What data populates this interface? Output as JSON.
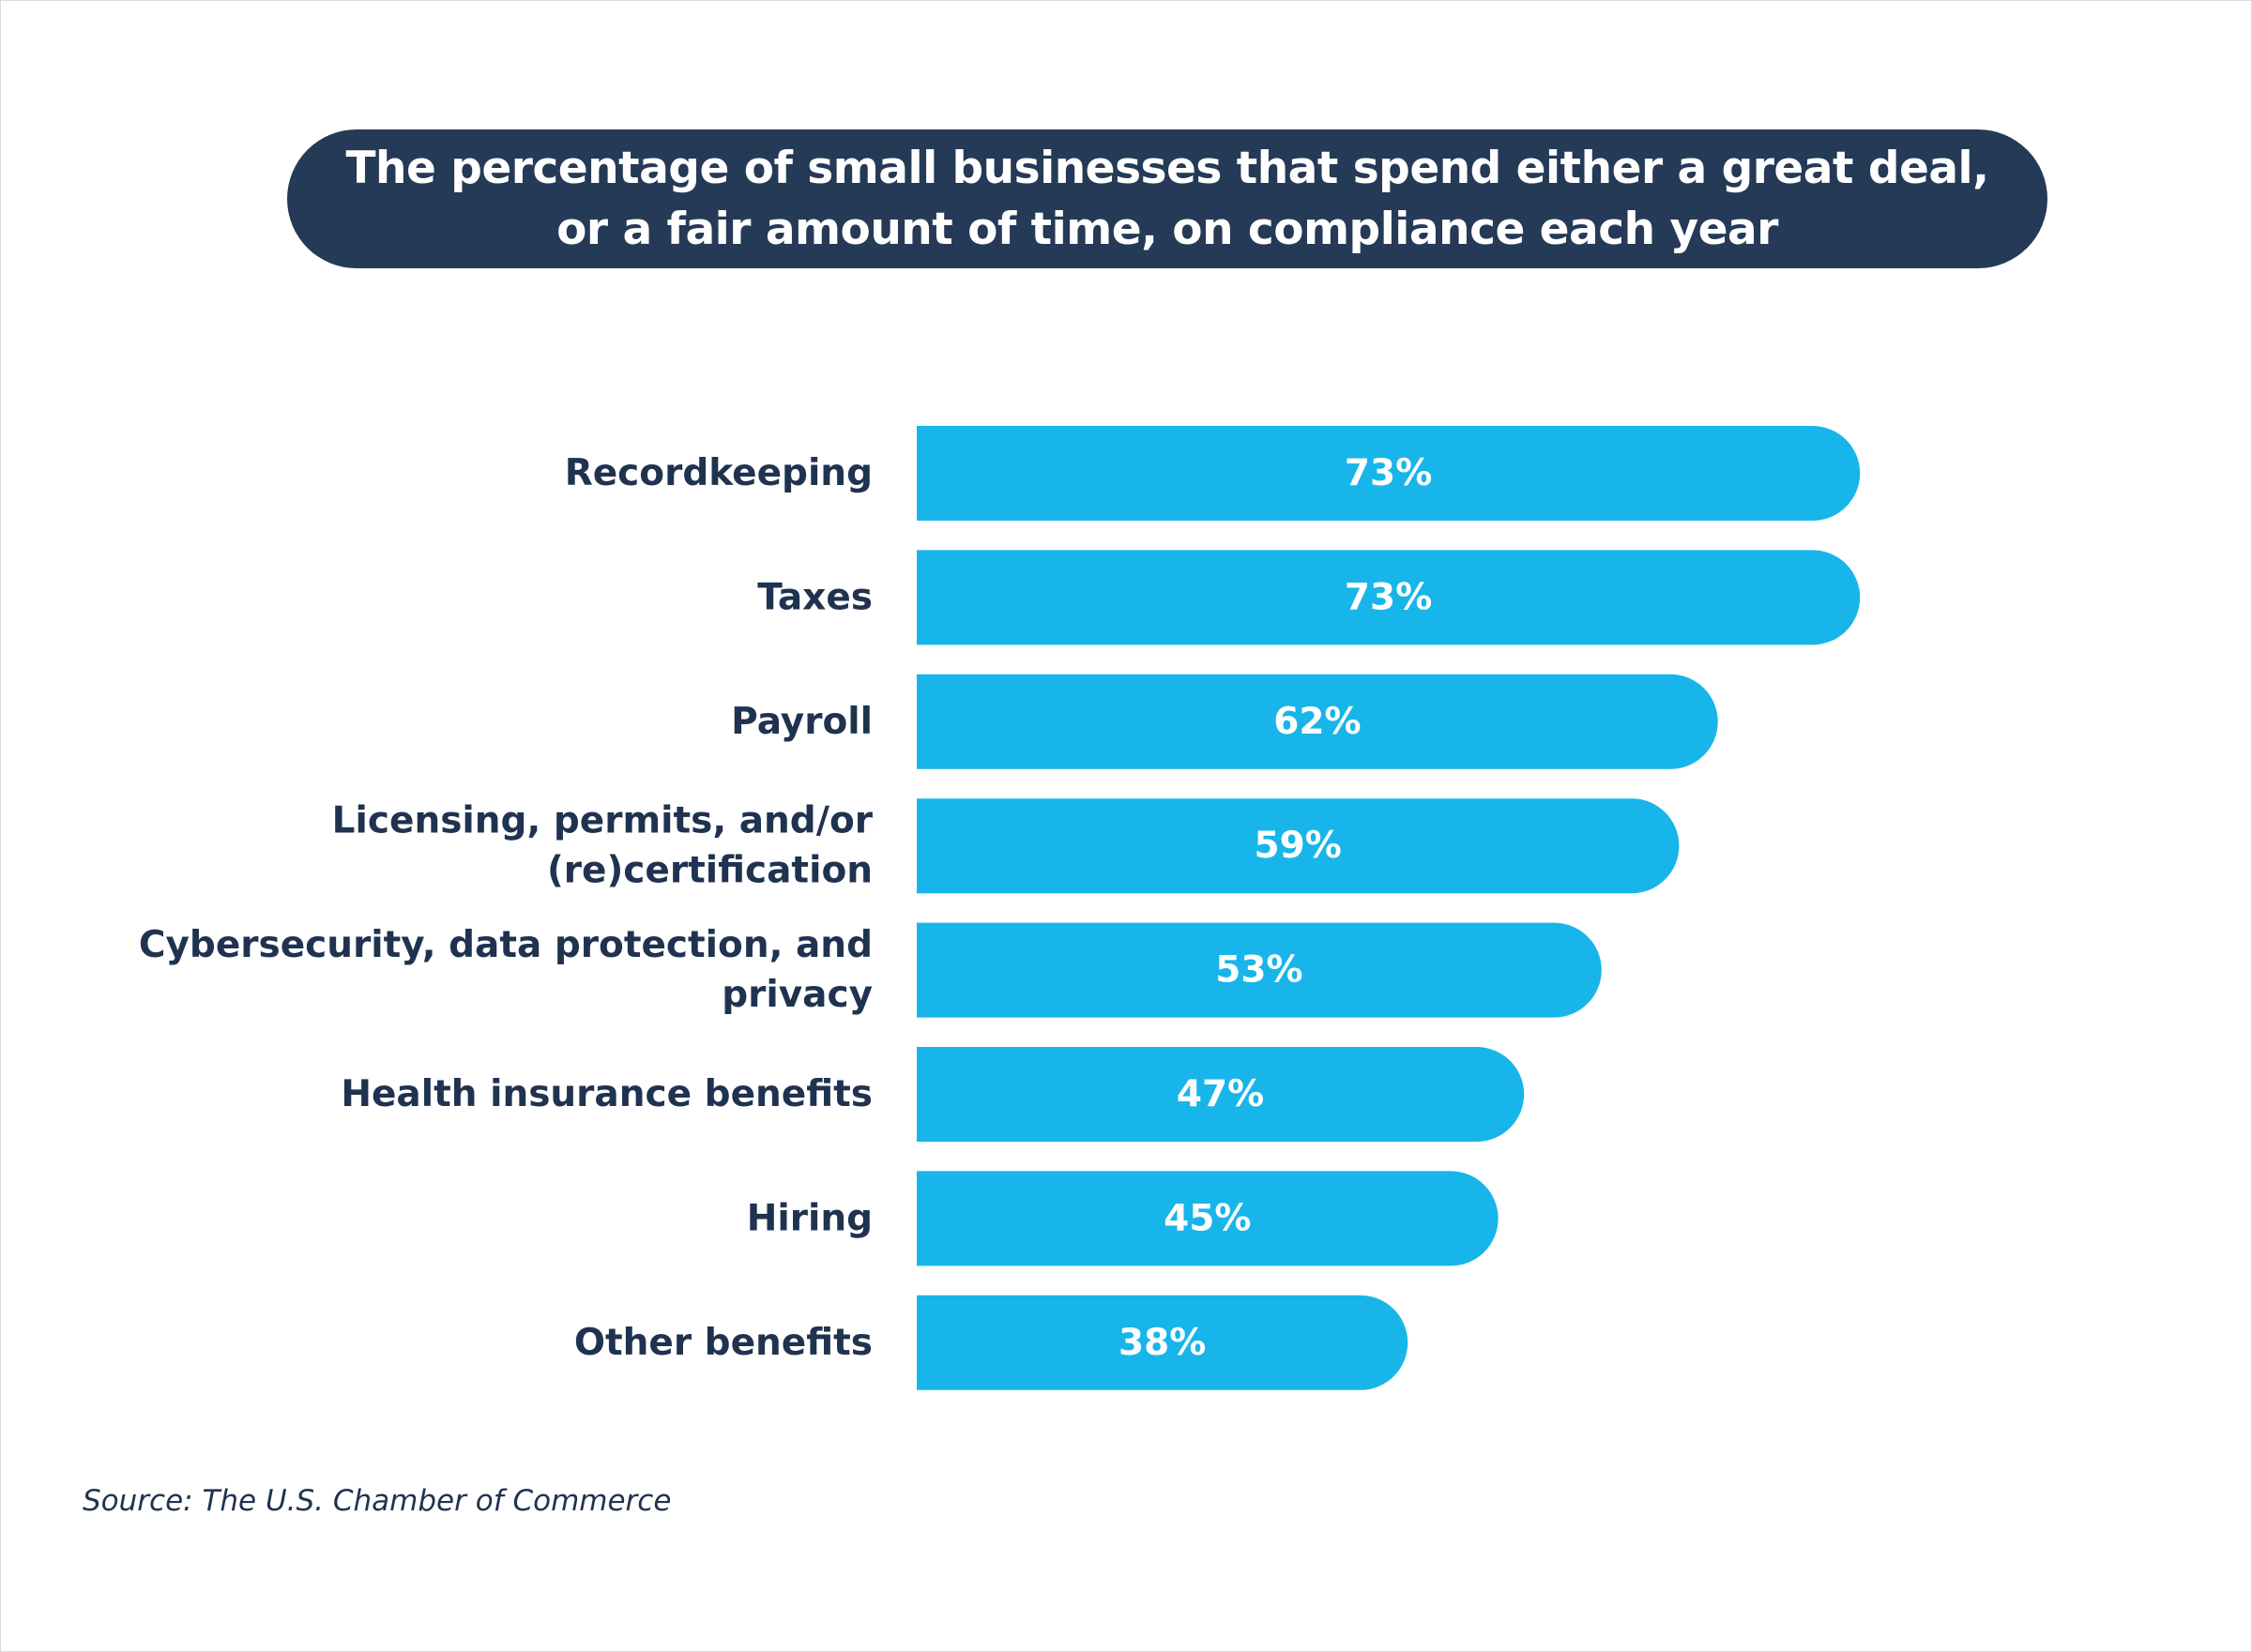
{
  "chart_data": {
    "type": "bar",
    "orientation": "horizontal",
    "title": "The percentage of small businesses that spend either a great deal,\nor a fair amount of time, on compliance each year",
    "categories": [
      "Recordkeeping",
      "Taxes",
      "Payroll",
      "Licensing, permits, and/or (re)certification",
      "Cybersecurity, data protection, and privacy",
      "Health insurance benefits",
      "Hiring",
      "Other benefits"
    ],
    "category_lines": [
      [
        "Recordkeeping"
      ],
      [
        "Taxes"
      ],
      [
        "Payroll"
      ],
      [
        "Licensing, permits, and/or",
        "(re)certification"
      ],
      [
        "Cybersecurity, data protection, and",
        "privacy"
      ],
      [
        "Health insurance benefits"
      ],
      [
        "Hiring"
      ],
      [
        "Other benefits"
      ]
    ],
    "values": [
      73,
      73,
      62,
      59,
      53,
      47,
      45,
      38
    ],
    "value_labels": [
      "73%",
      "73%",
      "62%",
      "59%",
      "53%",
      "47%",
      "45%",
      "38%"
    ],
    "unit": "%",
    "xlim": [
      0,
      100
    ],
    "grid": false,
    "bar_color": "#17b5ea",
    "label_color": "#1f3350",
    "title_background": "#243a56"
  },
  "source": "Source: The U.S. Chamber of Commerce"
}
